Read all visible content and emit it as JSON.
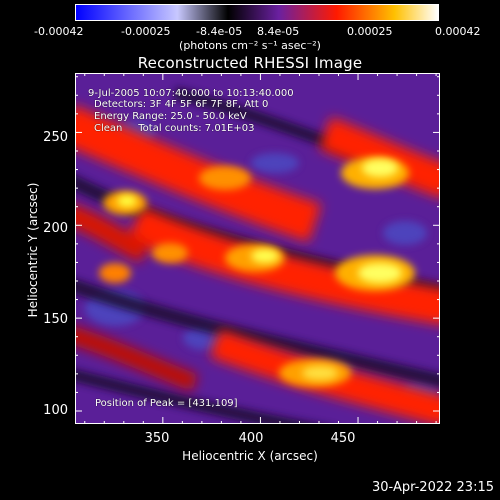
{
  "colorbar": {
    "tick_labels": [
      "-0.00042",
      "-0.00025",
      "-8.4e-05",
      "8.4e-05",
      "0.00025",
      "0.00042"
    ],
    "units": "(photons cm⁻² s⁻¹ asec⁻²)",
    "colors": [
      "#0000ff",
      "#ffffff",
      "#000000",
      "#7a22a0",
      "#ff2000",
      "#ffff40",
      "#ffffff"
    ]
  },
  "title": "Reconstructed RHESSI Image",
  "info": {
    "time_range": "9-Jul-2005 10:07:40.000 to 10:13:40.000",
    "detectors": "Detectors: 3F 4F 5F 6F 7F 8F, Att 0",
    "energy_range": "Energy Range: 25.0 - 50.0 keV",
    "clean_total": "Clean     Total counts: 7.01E+03",
    "peak": "Position of Peak = [431,109]"
  },
  "axes": {
    "xlabel": "Heliocentric X (arcsec)",
    "ylabel": "Heliocentric Y (arcsec)",
    "xticks": [
      "350",
      "400",
      "450"
    ],
    "yticks": [
      "250",
      "200",
      "150",
      "100"
    ],
    "xrange": [
      305,
      492
    ],
    "yrange": [
      93,
      282
    ]
  },
  "timestamp": "30-Apr-2022 23:15"
}
